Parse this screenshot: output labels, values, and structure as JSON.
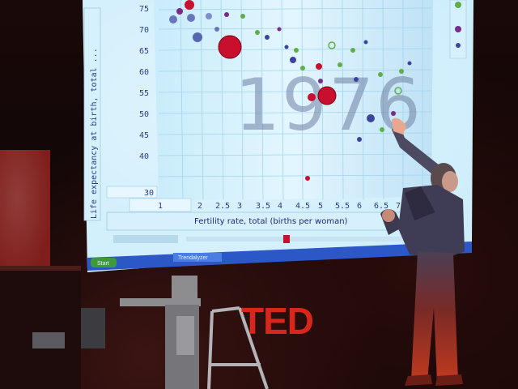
{
  "presentation": {
    "year": "1976",
    "y_axis_label": "Life expectancy at birth, total ...",
    "x_axis_label": "Fertility rate, total (births per woman)",
    "y_ticks": [
      "75",
      "70",
      "65",
      "60",
      "55",
      "50",
      "45",
      "40",
      "30"
    ],
    "x_ticks": [
      "1",
      "2",
      "2.5",
      "3",
      "3.5",
      "4",
      "4.5",
      "5",
      "5.5",
      "6",
      "6.5",
      "7"
    ],
    "taskbar_start": "Start",
    "taskbar_item": "Trendalyzer",
    "colors": {
      "screen_bg": "#bfe6f7",
      "grid": "#e9f6fd",
      "bubble_red": "#c8102e",
      "bubble_blue": "#3b45a0",
      "bubble_green": "#5fae4a",
      "logo_red": "#d7261c"
    }
  },
  "stage": {
    "logo": "TED"
  }
}
